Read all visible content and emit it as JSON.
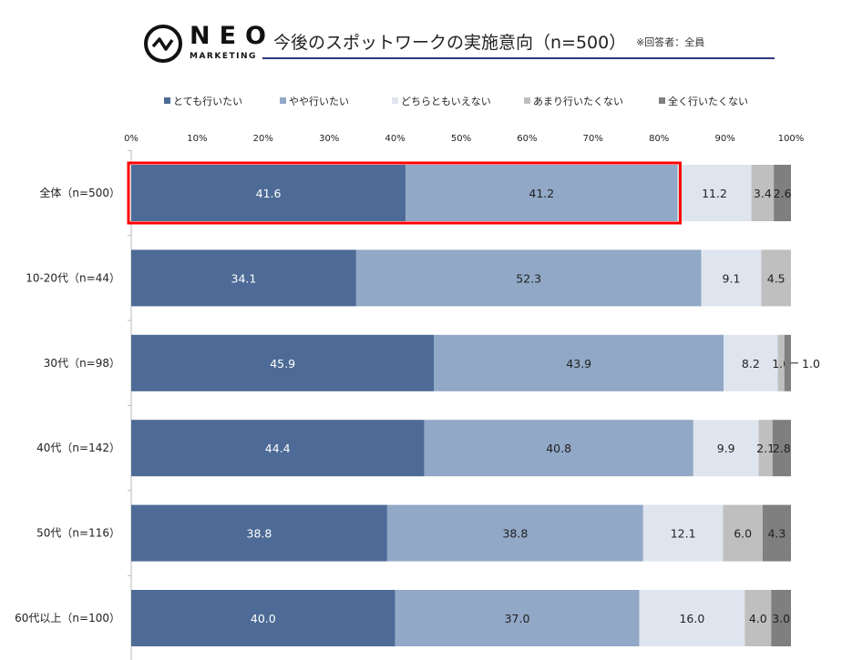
{
  "header": {
    "logo_text": "NEO",
    "logo_sub": "MARKETING",
    "title": "今後のスポットワークの実施意向（n=500）",
    "note": "※回答者：全員"
  },
  "chart_data": {
    "type": "bar",
    "orientation": "horizontal-stacked-100",
    "title": "今後のスポットワークの実施意向（n=500）",
    "xlim": [
      0,
      100
    ],
    "x_ticks": [
      "0%",
      "10%",
      "20%",
      "30%",
      "40%",
      "50%",
      "60%",
      "70%",
      "80%",
      "90%",
      "100%"
    ],
    "legend_position": "top",
    "categories": [
      "全体（n=500）",
      "10-20代（n=44）",
      "30代（n=98）",
      "40代（n=142）",
      "50代（n=116）",
      "60代以上（n=100）"
    ],
    "series": [
      {
        "name": "とても行いたい",
        "color": "#4d6b96",
        "label_color": "#ffffff",
        "values": [
          41.6,
          34.1,
          45.9,
          44.4,
          38.8,
          40.0
        ]
      },
      {
        "name": "やや行いたい",
        "color": "#91a8c6",
        "label_color": "#222222",
        "values": [
          41.2,
          52.3,
          43.9,
          40.8,
          38.8,
          37.0
        ]
      },
      {
        "name": "どちらともいえない",
        "color": "#dfe5ef",
        "label_color": "#222222",
        "values": [
          11.2,
          9.1,
          8.2,
          9.9,
          12.1,
          16.0
        ]
      },
      {
        "name": "あまり行いたくない",
        "color": "#bfbfbf",
        "label_color": "#222222",
        "values": [
          3.4,
          4.5,
          1.0,
          2.1,
          6.0,
          4.0
        ]
      },
      {
        "name": "全く行いたくない",
        "color": "#7f7f7f",
        "label_color": "#222222",
        "values": [
          2.6,
          0,
          1.0,
          2.8,
          4.3,
          3.0
        ]
      }
    ],
    "highlight_category": "全体（n=500）",
    "highlight_color": "#ff0000"
  }
}
